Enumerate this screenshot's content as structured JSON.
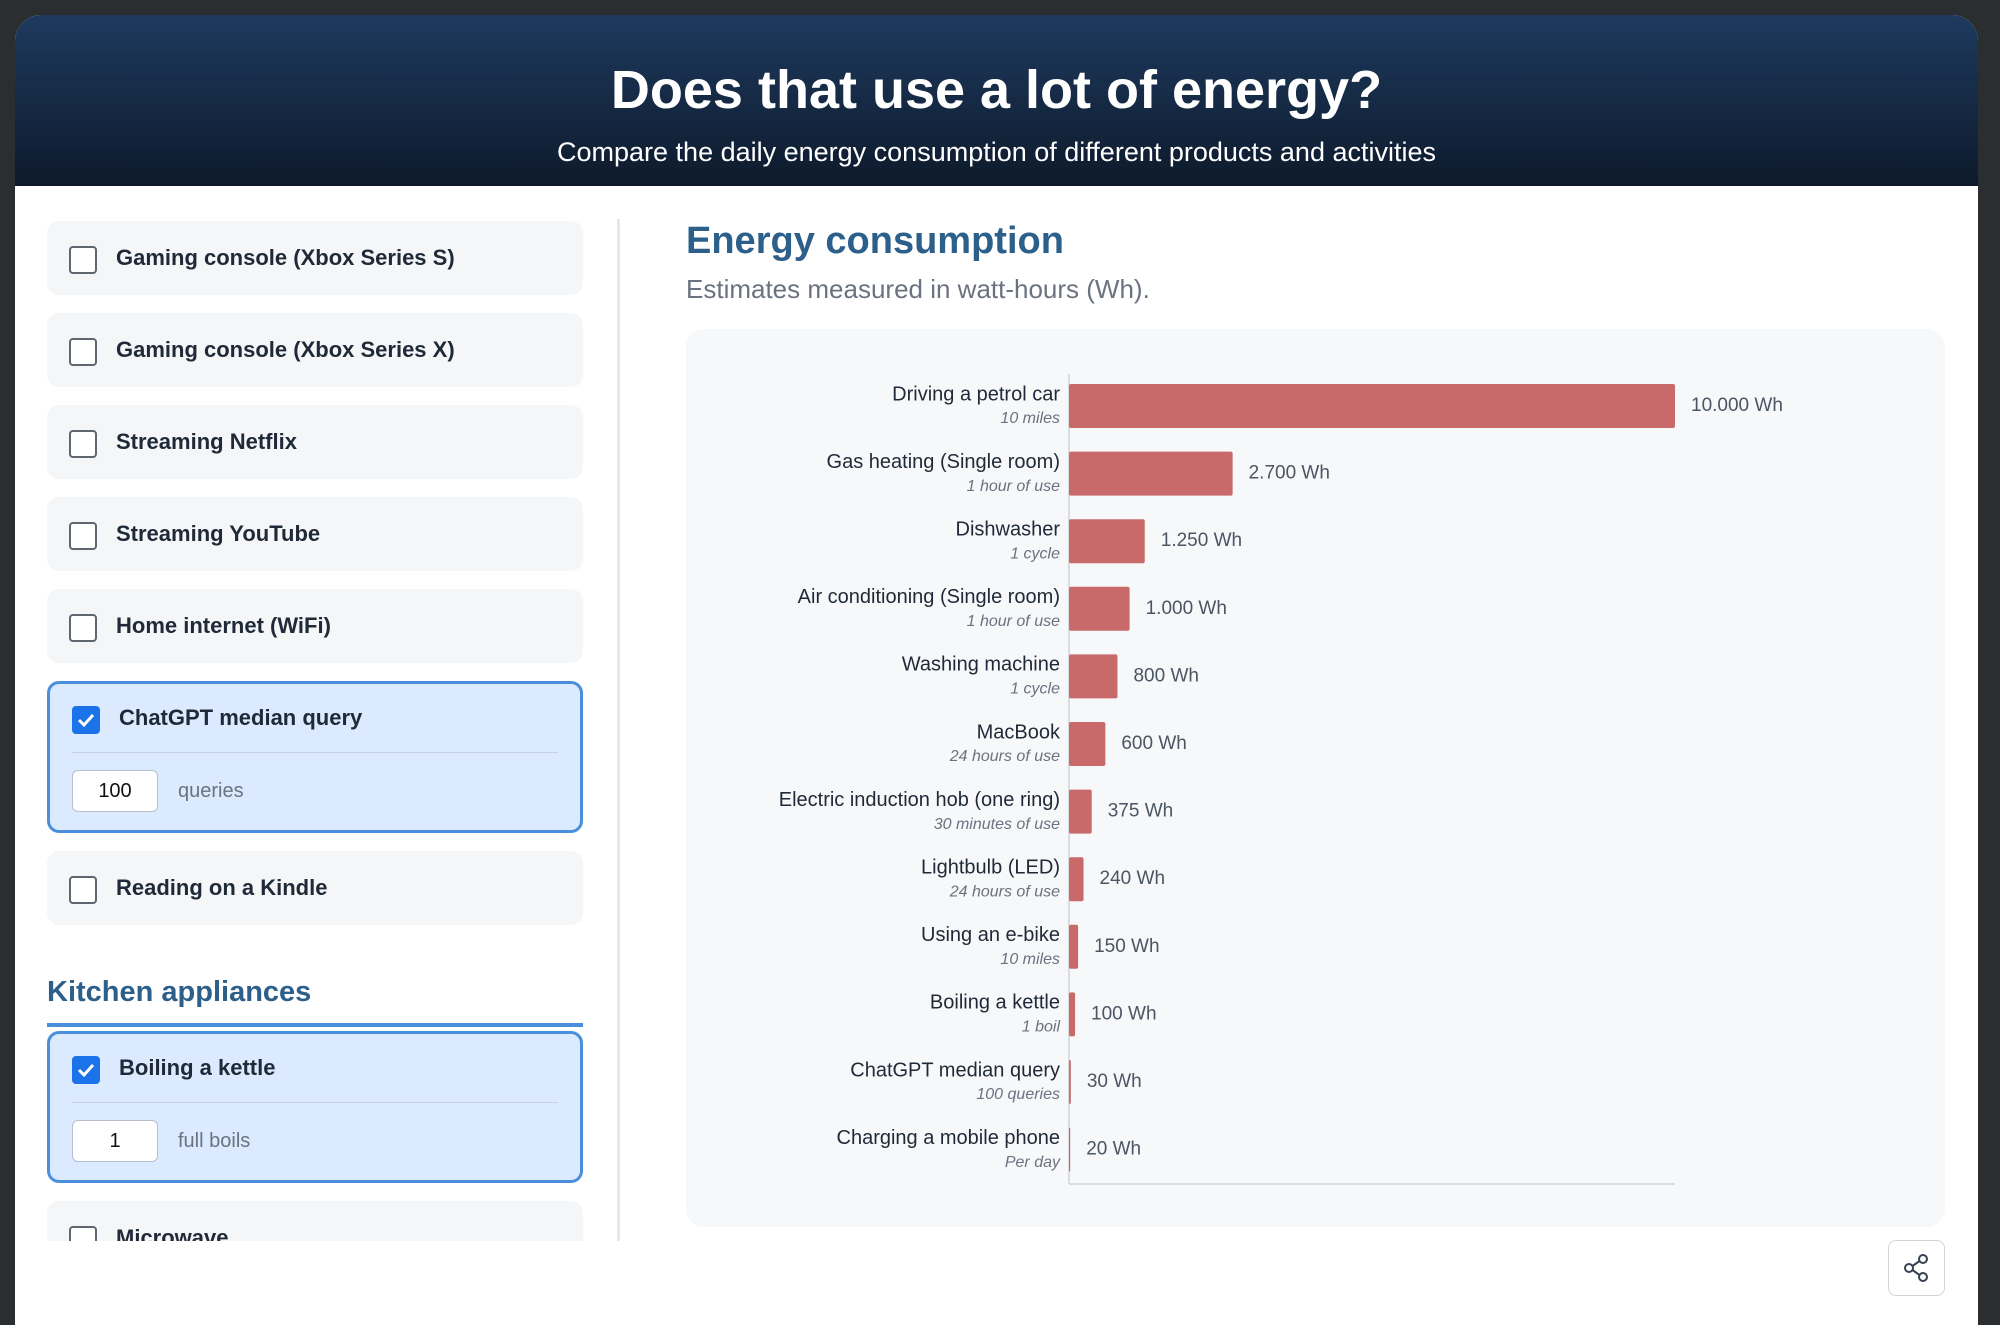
{
  "header": {
    "title": "Does that use a lot of energy?",
    "subtitle": "Compare the daily energy consumption of different products and activities"
  },
  "sidebar": {
    "items": [
      {
        "label": "Gaming console (Xbox Series S)",
        "checked": false
      },
      {
        "label": "Gaming console (Xbox Series X)",
        "checked": false
      },
      {
        "label": "Streaming Netflix",
        "checked": false
      },
      {
        "label": "Streaming YouTube",
        "checked": false
      },
      {
        "label": "Home internet (WiFi)",
        "checked": false
      },
      {
        "label": "ChatGPT median query",
        "checked": true,
        "amount": 100,
        "unit": "queries"
      },
      {
        "label": "Reading on a Kindle",
        "checked": false
      }
    ],
    "sections": [
      {
        "heading": "Kitchen appliances",
        "items": [
          {
            "label": "Boiling a kettle",
            "checked": true,
            "amount": 1,
            "unit": "full boils"
          },
          {
            "label": "Microwave",
            "checked": false
          }
        ]
      }
    ]
  },
  "chart_data": {
    "type": "bar",
    "orientation": "horizontal",
    "title": "Energy consumption",
    "subtitle": "Estimates measured in watt-hours (Wh).",
    "categories": [
      "Driving a petrol car",
      "Gas heating (Single room)",
      "Dishwasher",
      "Air conditioning (Single room)",
      "Washing machine",
      "MacBook",
      "Electric induction hob (one ring)",
      "Lightbulb (LED)",
      "Using an e-bike",
      "Boiling a kettle",
      "ChatGPT median query",
      "Charging a mobile phone"
    ],
    "category_notes": [
      "10 miles",
      "1 hour of use",
      "1 cycle",
      "1 hour of use",
      "1 cycle",
      "24 hours of use",
      "30 minutes of use",
      "24 hours of use",
      "10 miles",
      "1 boil",
      "100 queries",
      "Per day"
    ],
    "values": [
      10000,
      2700,
      1250,
      1000,
      800,
      600,
      375,
      240,
      150,
      100,
      30,
      20
    ],
    "value_labels": [
      "10.000 Wh",
      "2.700 Wh",
      "1.250 Wh",
      "1.000 Wh",
      "800 Wh",
      "600 Wh",
      "375 Wh",
      "240 Wh",
      "150 Wh",
      "100 Wh",
      "30 Wh",
      "20 Wh"
    ],
    "color": "#c96a6a",
    "xlim": [
      0,
      10000
    ]
  }
}
